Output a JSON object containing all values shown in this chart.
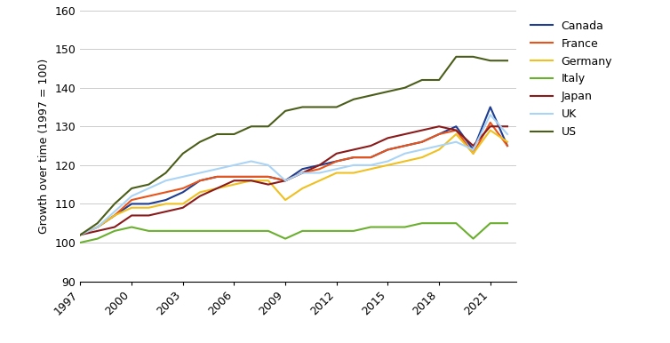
{
  "years": [
    1997,
    1998,
    1999,
    2000,
    2001,
    2002,
    2003,
    2004,
    2005,
    2006,
    2007,
    2008,
    2009,
    2010,
    2011,
    2012,
    2013,
    2014,
    2015,
    2016,
    2017,
    2018,
    2019,
    2020,
    2021,
    2022
  ],
  "Canada": [
    102,
    104,
    107,
    110,
    110,
    111,
    113,
    116,
    117,
    117,
    117,
    117,
    116,
    119,
    120,
    121,
    122,
    122,
    124,
    125,
    126,
    128,
    130,
    124,
    135,
    125
  ],
  "France": [
    102,
    104,
    107,
    111,
    112,
    113,
    114,
    116,
    117,
    117,
    117,
    117,
    116,
    118,
    119,
    121,
    122,
    122,
    124,
    125,
    126,
    128,
    129,
    123,
    131,
    125
  ],
  "Germany": [
    102,
    104,
    107,
    109,
    109,
    110,
    110,
    113,
    114,
    115,
    116,
    116,
    111,
    114,
    116,
    118,
    118,
    119,
    120,
    121,
    122,
    124,
    128,
    123,
    129,
    126
  ],
  "Italy": [
    100,
    101,
    103,
    104,
    103,
    103,
    103,
    103,
    103,
    103,
    103,
    103,
    101,
    103,
    103,
    103,
    103,
    104,
    104,
    104,
    105,
    105,
    105,
    101,
    105,
    105
  ],
  "Japan": [
    102,
    103,
    104,
    107,
    107,
    108,
    109,
    112,
    114,
    116,
    116,
    115,
    116,
    118,
    120,
    123,
    124,
    125,
    127,
    128,
    129,
    130,
    129,
    125,
    130,
    130
  ],
  "UK": [
    102,
    104,
    108,
    112,
    114,
    116,
    117,
    118,
    119,
    120,
    121,
    120,
    116,
    118,
    118,
    119,
    120,
    120,
    121,
    123,
    124,
    125,
    126,
    124,
    133,
    128
  ],
  "US": [
    102,
    105,
    110,
    114,
    115,
    118,
    123,
    126,
    128,
    128,
    130,
    130,
    134,
    135,
    135,
    135,
    137,
    138,
    139,
    140,
    142,
    142,
    148,
    148,
    147,
    147
  ],
  "colors": {
    "Canada": "#1f3d91",
    "France": "#e8541a",
    "Germany": "#f0c020",
    "Italy": "#6aaf2e",
    "Japan": "#8b1a1a",
    "UK": "#aad4f5",
    "US": "#4a5e1a"
  },
  "ylabel": "Growth over time (1997 = 100)",
  "ylim": [
    90,
    160
  ],
  "yticks": [
    90,
    100,
    110,
    120,
    130,
    140,
    150,
    160
  ],
  "xticks": [
    1997,
    2000,
    2003,
    2006,
    2009,
    2012,
    2015,
    2018,
    2021
  ],
  "xlim_start": 1997,
  "xlim_end": 2022.5,
  "background_color": "#ffffff",
  "grid_color": "#cccccc"
}
